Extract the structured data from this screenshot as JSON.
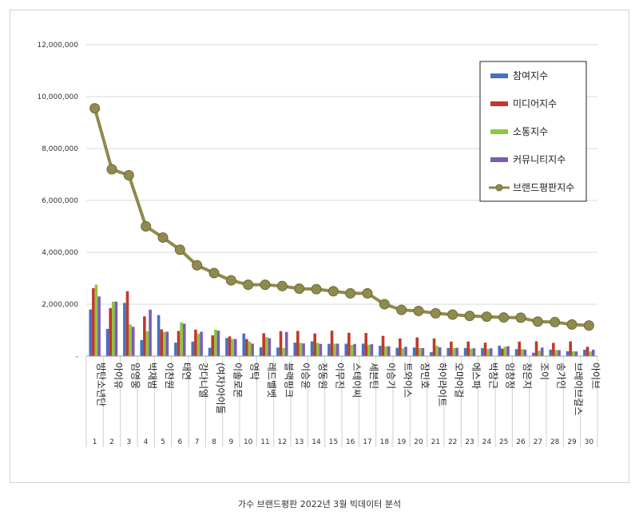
{
  "caption": "가수 브랜드평판  2022년 3월 빅데이터 분석",
  "chart_data": {
    "type": "bar",
    "ylim": [
      0,
      12000000
    ],
    "yticks": [
      "-",
      "2,000,000",
      "4,000,000",
      "6,000,000",
      "8,000,000",
      "10,000,000",
      "12,000,000"
    ],
    "ytick_values": [
      0,
      2000000,
      4000000,
      6000000,
      8000000,
      10000000,
      12000000
    ],
    "grid": true,
    "legend_position": "top-right",
    "categories": [
      "방탄소년단",
      "아이유",
      "임영웅",
      "박재범",
      "이찬원",
      "태연",
      "강다니엘",
      "(여자)아이들",
      "이솔로몬",
      "영탁",
      "레드벨벳",
      "블랙핑크",
      "이승윤",
      "정동원",
      "이무진",
      "스테이씨",
      "세븐틴",
      "이승기",
      "트와이스",
      "장민호",
      "하이라이트",
      "오마이걸",
      "에스파",
      "박창근",
      "임창정",
      "정은지",
      "조이",
      "송가인",
      "브레이브걸스",
      "아이브"
    ],
    "ranks": [
      "1",
      "2",
      "3",
      "4",
      "5",
      "6",
      "7",
      "8",
      "9",
      "10",
      "11",
      "12",
      "13",
      "14",
      "15",
      "16",
      "17",
      "18",
      "19",
      "20",
      "21",
      "22",
      "23",
      "24",
      "25",
      "26",
      "27",
      "28",
      "29",
      "30"
    ],
    "series": [
      {
        "name": "참여지수",
        "kind": "bar",
        "color": "#4472c4",
        "values": [
          1800000,
          1050000,
          2050000,
          620000,
          1580000,
          520000,
          560000,
          320000,
          700000,
          870000,
          340000,
          330000,
          520000,
          570000,
          470000,
          480000,
          480000,
          400000,
          320000,
          330000,
          150000,
          310000,
          310000,
          310000,
          400000,
          270000,
          130000,
          250000,
          190000,
          250000
        ]
      },
      {
        "name": "미디어지수",
        "kind": "bar",
        "color": "#c0392b",
        "values": [
          2620000,
          1850000,
          2500000,
          1530000,
          1030000,
          970000,
          1020000,
          800000,
          760000,
          660000,
          880000,
          960000,
          970000,
          870000,
          980000,
          900000,
          890000,
          780000,
          680000,
          720000,
          680000,
          560000,
          560000,
          520000,
          290000,
          560000,
          570000,
          510000,
          570000,
          360000
        ]
      },
      {
        "name": "소통지수",
        "kind": "bar",
        "color": "#8dc63f",
        "values": [
          2750000,
          2100000,
          1220000,
          960000,
          930000,
          1300000,
          860000,
          1020000,
          660000,
          560000,
          730000,
          310000,
          510000,
          510000,
          480000,
          430000,
          440000,
          380000,
          300000,
          310000,
          400000,
          310000,
          290000,
          280000,
          360000,
          270000,
          210000,
          240000,
          190000,
          180000
        ]
      },
      {
        "name": "커뮤니티지수",
        "kind": "bar",
        "color": "#7c5cb3",
        "values": [
          2300000,
          2100000,
          1130000,
          1790000,
          940000,
          1250000,
          940000,
          980000,
          660000,
          480000,
          690000,
          930000,
          490000,
          470000,
          480000,
          470000,
          460000,
          380000,
          360000,
          310000,
          340000,
          320000,
          300000,
          300000,
          380000,
          250000,
          330000,
          230000,
          180000,
          250000
        ]
      },
      {
        "name": "브랜드평판지수",
        "kind": "line",
        "color": "#908a4e",
        "values": [
          9550000,
          7200000,
          6970000,
          5000000,
          4570000,
          4100000,
          3500000,
          3200000,
          2920000,
          2750000,
          2750000,
          2700000,
          2600000,
          2580000,
          2500000,
          2420000,
          2420000,
          2000000,
          1780000,
          1740000,
          1650000,
          1600000,
          1550000,
          1520000,
          1490000,
          1480000,
          1330000,
          1310000,
          1220000,
          1180000
        ]
      }
    ]
  }
}
